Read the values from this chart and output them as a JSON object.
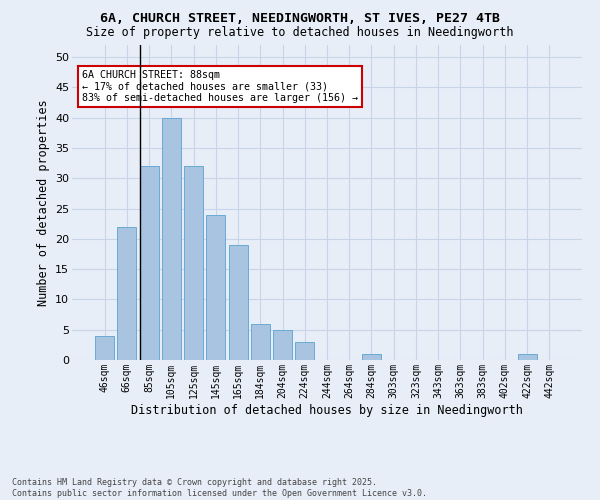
{
  "title_line1": "6A, CHURCH STREET, NEEDINGWORTH, ST IVES, PE27 4TB",
  "title_line2": "Size of property relative to detached houses in Needingworth",
  "xlabel": "Distribution of detached houses by size in Needingworth",
  "ylabel": "Number of detached properties",
  "bar_labels": [
    "46sqm",
    "66sqm",
    "85sqm",
    "105sqm",
    "125sqm",
    "145sqm",
    "165sqm",
    "184sqm",
    "204sqm",
    "224sqm",
    "244sqm",
    "264sqm",
    "284sqm",
    "303sqm",
    "323sqm",
    "343sqm",
    "363sqm",
    "383sqm",
    "402sqm",
    "422sqm",
    "442sqm"
  ],
  "bar_values": [
    4,
    22,
    32,
    40,
    32,
    24,
    19,
    6,
    5,
    3,
    0,
    0,
    1,
    0,
    0,
    0,
    0,
    0,
    0,
    1,
    0
  ],
  "bar_color": "#a8c4e0",
  "bar_edge_color": "#6aaad4",
  "grid_color": "#c8d4e8",
  "background_color": "#e8eef8",
  "vline_color": "#000000",
  "annotation_text": "6A CHURCH STREET: 88sqm\n← 17% of detached houses are smaller (33)\n83% of semi-detached houses are larger (156) →",
  "annotation_box_color": "#ffffff",
  "annotation_box_edge": "#cc0000",
  "ylim": [
    0,
    52
  ],
  "yticks": [
    0,
    5,
    10,
    15,
    20,
    25,
    30,
    35,
    40,
    45,
    50
  ],
  "footer_line1": "Contains HM Land Registry data © Crown copyright and database right 2025.",
  "footer_line2": "Contains public sector information licensed under the Open Government Licence v3.0."
}
